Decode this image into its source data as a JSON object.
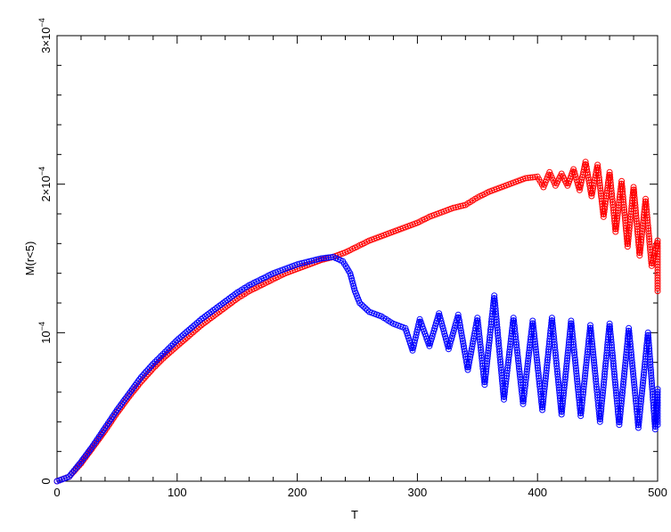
{
  "chart_data": {
    "type": "line",
    "title": "",
    "xlabel": "T",
    "ylabel": "M(r<5)",
    "xlim": [
      0,
      500
    ],
    "ylim": [
      0,
      0.0003
    ],
    "grid": false,
    "legend": "none",
    "x_ticks": [
      {
        "value": 0,
        "label": "0"
      },
      {
        "value": 100,
        "label": "100"
      },
      {
        "value": 200,
        "label": "200"
      },
      {
        "value": 300,
        "label": "300"
      },
      {
        "value": 400,
        "label": "400"
      },
      {
        "value": 500,
        "label": "500"
      }
    ],
    "y_ticks": [
      {
        "value": 0,
        "label": "0",
        "mant": "",
        "exp": ""
      },
      {
        "value": 0.0001,
        "label": "",
        "mant": "10",
        "exp": "−4"
      },
      {
        "value": 0.0002,
        "label": "",
        "mant": "2×10",
        "exp": "−4"
      },
      {
        "value": 0.0003,
        "label": "",
        "mant": "3×10",
        "exp": "−4"
      }
    ],
    "series": [
      {
        "color": "#ff0000",
        "marker": "circle",
        "points": [
          [
            0,
            0
          ],
          [
            10,
            3e-06
          ],
          [
            20,
            1.2e-05
          ],
          [
            30,
            2.3e-05
          ],
          [
            40,
            3.4e-05
          ],
          [
            50,
            4.6e-05
          ],
          [
            60,
            5.7e-05
          ],
          [
            70,
            6.7e-05
          ],
          [
            80,
            7.6e-05
          ],
          [
            90,
            8.4e-05
          ],
          [
            100,
            9.1e-05
          ],
          [
            110,
            9.8e-05
          ],
          [
            120,
            0.000105
          ],
          [
            130,
            0.000111
          ],
          [
            140,
            0.000117
          ],
          [
            150,
            0.000123
          ],
          [
            160,
            0.000128
          ],
          [
            170,
            0.000132
          ],
          [
            180,
            0.000136
          ],
          [
            190,
            0.00014
          ],
          [
            200,
            0.000143
          ],
          [
            210,
            0.000146
          ],
          [
            220,
            0.000149
          ],
          [
            230,
            0.000151
          ],
          [
            240,
            0.000154
          ],
          [
            250,
            0.000158
          ],
          [
            260,
            0.000162
          ],
          [
            270,
            0.000165
          ],
          [
            280,
            0.000168
          ],
          [
            290,
            0.000171
          ],
          [
            300,
            0.000174
          ],
          [
            310,
            0.000178
          ],
          [
            320,
            0.000181
          ],
          [
            330,
            0.000184
          ],
          [
            340,
            0.000186
          ],
          [
            350,
            0.000191
          ],
          [
            360,
            0.000195
          ],
          [
            370,
            0.000198
          ],
          [
            380,
            0.000201
          ],
          [
            390,
            0.000204
          ],
          [
            400,
            0.000205
          ],
          [
            405,
            0.000198
          ],
          [
            410,
            0.000208
          ],
          [
            415,
            0.000199
          ],
          [
            420,
            0.000207
          ],
          [
            425,
            0.000199
          ],
          [
            430,
            0.00021
          ],
          [
            435,
            0.000196
          ],
          [
            440,
            0.000215
          ],
          [
            445,
            0.000192
          ],
          [
            450,
            0.000213
          ],
          [
            455,
            0.000178
          ],
          [
            460,
            0.000208
          ],
          [
            465,
            0.000168
          ],
          [
            470,
            0.000202
          ],
          [
            475,
            0.000158
          ],
          [
            480,
            0.000198
          ],
          [
            485,
            0.000152
          ],
          [
            490,
            0.00019
          ],
          [
            495,
            0.000145
          ],
          [
            500,
            0.000162
          ],
          [
            502,
            0.000128
          ]
        ]
      },
      {
        "color": "#0000ff",
        "marker": "circle",
        "points": [
          [
            0,
            0
          ],
          [
            10,
            3e-06
          ],
          [
            20,
            1.3e-05
          ],
          [
            30,
            2.4e-05
          ],
          [
            40,
            3.6e-05
          ],
          [
            50,
            4.8e-05
          ],
          [
            60,
            5.9e-05
          ],
          [
            70,
            7e-05
          ],
          [
            80,
            7.9e-05
          ],
          [
            90,
            8.7e-05
          ],
          [
            100,
            9.5e-05
          ],
          [
            110,
            0.000102
          ],
          [
            120,
            0.000109
          ],
          [
            130,
            0.000115
          ],
          [
            140,
            0.000121
          ],
          [
            150,
            0.000127
          ],
          [
            160,
            0.000132
          ],
          [
            170,
            0.000136
          ],
          [
            180,
            0.00014
          ],
          [
            190,
            0.000143
          ],
          [
            200,
            0.000146
          ],
          [
            210,
            0.000148
          ],
          [
            220,
            0.00015
          ],
          [
            230,
            0.000151
          ],
          [
            238,
            0.000148
          ],
          [
            244,
            0.00014
          ],
          [
            248,
            0.000128
          ],
          [
            252,
            0.00012
          ],
          [
            260,
            0.000114
          ],
          [
            270,
            0.000111
          ],
          [
            280,
            0.000106
          ],
          [
            290,
            0.000103
          ],
          [
            296,
            8.8e-05
          ],
          [
            302,
            0.000109
          ],
          [
            310,
            9.1e-05
          ],
          [
            318,
            0.000113
          ],
          [
            326,
            8.9e-05
          ],
          [
            334,
            0.000112
          ],
          [
            342,
            7.5e-05
          ],
          [
            350,
            0.00011
          ],
          [
            356,
            6.5e-05
          ],
          [
            364,
            0.000125
          ],
          [
            372,
            5.5e-05
          ],
          [
            380,
            0.00011
          ],
          [
            388,
            5.2e-05
          ],
          [
            396,
            0.000108
          ],
          [
            404,
            4.8e-05
          ],
          [
            412,
            0.00011
          ],
          [
            420,
            4.5e-05
          ],
          [
            428,
            0.000108
          ],
          [
            436,
            4.4e-05
          ],
          [
            444,
            0.000105
          ],
          [
            452,
            4e-05
          ],
          [
            460,
            0.000106
          ],
          [
            468,
            3.8e-05
          ],
          [
            476,
            0.000103
          ],
          [
            484,
            3.6e-05
          ],
          [
            492,
            0.0001
          ],
          [
            498,
            3.5e-05
          ],
          [
            502,
            6.2e-05
          ],
          [
            504,
            3.8e-05
          ]
        ]
      }
    ]
  }
}
